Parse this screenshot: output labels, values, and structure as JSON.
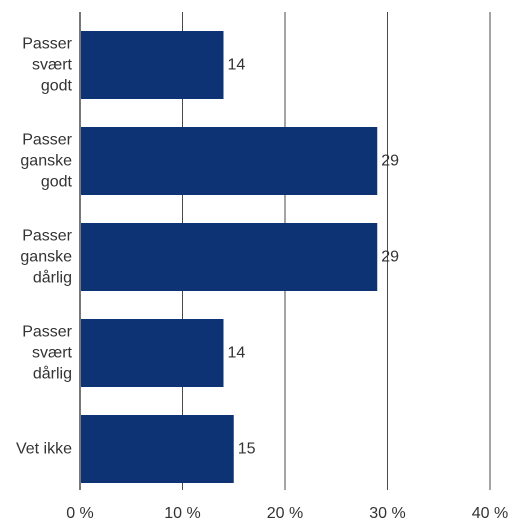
{
  "chart_data": {
    "type": "bar",
    "orientation": "horizontal",
    "categories": [
      [
        "Passer",
        "svært",
        "godt"
      ],
      [
        "Passer",
        "ganske",
        "godt"
      ],
      [
        "Passer",
        "ganske",
        "dårlig"
      ],
      [
        "Passer",
        "svært",
        "dårlig"
      ],
      [
        "Vet ikke"
      ]
    ],
    "values": [
      14,
      29,
      29,
      14,
      15
    ],
    "value_labels": [
      "14",
      "29",
      "29",
      "14",
      "15"
    ],
    "xlim": [
      0,
      40
    ],
    "xticks": [
      0,
      10,
      20,
      30,
      40
    ],
    "xtick_labels": [
      "0 %",
      "10 %",
      "20 %",
      "30 %",
      "40 %"
    ],
    "grid": "vertical",
    "bar_color": "#0d3374",
    "grid_color": "#4a4a4a",
    "text_color": "#333333",
    "title": "",
    "xlabel": "",
    "ylabel": ""
  }
}
